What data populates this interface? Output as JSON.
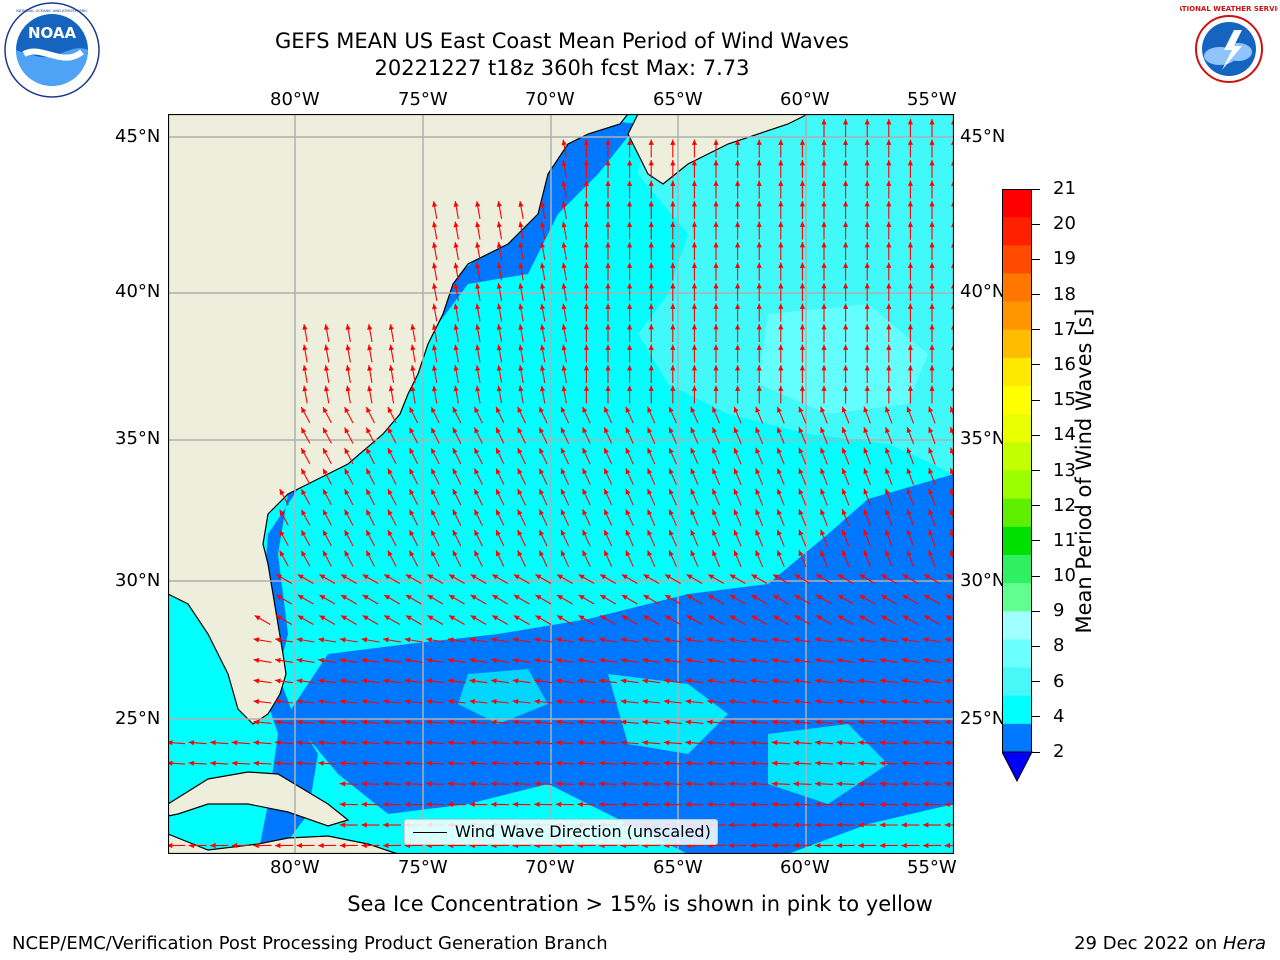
{
  "header": {
    "title_line1": "GEFS MEAN US East Coast Mean Period of Wind Waves",
    "title_line2": "20221227 t18z 360h fcst   Max: 7.73"
  },
  "logos": {
    "left": {
      "name": "noaa-logo",
      "text": "NOAA",
      "ring_text": "NATIONAL OCEANIC AND ATMOSPHERIC ADMINISTRATION · U.S. DEPARTMENT OF COMMERCE"
    },
    "right": {
      "name": "nws-logo",
      "ring_text": "NATIONAL WEATHER SERVICE"
    }
  },
  "map": {
    "lon_labels": [
      "80°W",
      "75°W",
      "70°W",
      "65°W",
      "60°W",
      "55°W"
    ],
    "lat_labels": [
      "45°N",
      "40°N",
      "35°N",
      "30°N",
      "25°N"
    ],
    "legend_label": "Wind Wave Direction (unscaled)",
    "colors": {
      "land": "#eeeedc",
      "gridline": "#b0b0b0",
      "arrow": "#ff0000",
      "coast": "#000000"
    }
  },
  "colorbar": {
    "label": "Mean Period of Wind Waves [s]",
    "ticks": [
      "21",
      "20",
      "19",
      "18",
      "17",
      "16",
      "15",
      "14",
      "13",
      "12",
      "11",
      "10",
      "9",
      "8",
      "6",
      "4",
      "2"
    ],
    "colors_top_to_bottom": [
      "#ff0000",
      "#ff2000",
      "#ff4a00",
      "#ff7700",
      "#ff9600",
      "#ffbc00",
      "#ffe800",
      "#ffff00",
      "#e9ff00",
      "#c4ff00",
      "#9cff00",
      "#5ef000",
      "#00e000",
      "#2ef060",
      "#60ff90",
      "#a0ffff",
      "#6cffff",
      "#48f8f8",
      "#00ffff",
      "#0077ff"
    ],
    "extend_color": "#0000ff"
  },
  "footer": {
    "note": "Sea Ice Concentration > 15% is shown in pink to yellow",
    "left": "NCEP/EMC/Verification Post Processing Product Generation Branch",
    "right_date": "29 Dec 2022 on ",
    "right_host": "Hera"
  }
}
